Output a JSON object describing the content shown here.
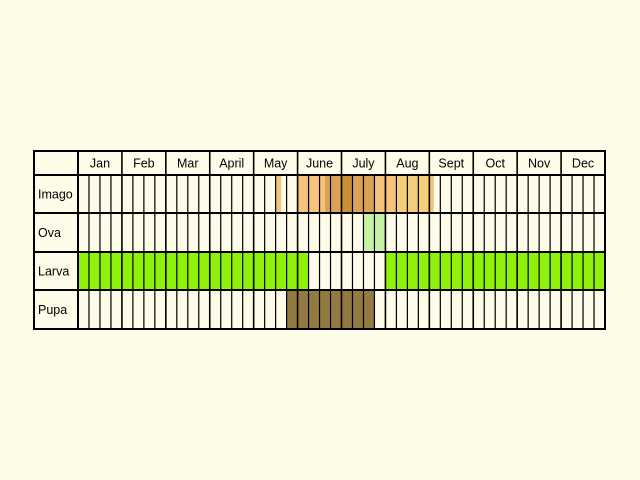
{
  "chart_data": {
    "type": "table",
    "months": [
      "Jan",
      "Feb",
      "Mar",
      "April",
      "May",
      "June",
      "July",
      "Aug",
      "Sept",
      "Oct",
      "Nov",
      "Dec"
    ],
    "subdivisions_per_month": 4,
    "period_unit": "quarter-month periods (1 = first quarter of Jan, 48 = last quarter of Dec)",
    "grid": true,
    "stages": [
      {
        "label": "Imago",
        "bands": [
          {
            "from": 18.0,
            "to": 18.5,
            "color": "#f5c47a"
          },
          {
            "from": 20.0,
            "to": 22.5,
            "color": "#f5c47a"
          },
          {
            "from": 22.5,
            "to": 24.0,
            "color": "#dba255"
          },
          {
            "from": 24.0,
            "to": 25.0,
            "color": "#c98e36"
          },
          {
            "from": 25.0,
            "to": 27.0,
            "color": "#dba255"
          },
          {
            "from": 27.0,
            "to": 28.5,
            "color": "#f5c47a"
          },
          {
            "from": 28.5,
            "to": 29.0,
            "color": "#f5c47a"
          },
          {
            "from": 29.0,
            "to": 32.0,
            "color": "#f5ce7a"
          },
          {
            "from": 32.0,
            "to": 32.4,
            "color": "#f5c47a"
          }
        ]
      },
      {
        "label": "Ova",
        "bands": [
          {
            "from": 26.0,
            "to": 28.0,
            "color": "#c7f2a4"
          }
        ]
      },
      {
        "label": "Larva",
        "bands": [
          {
            "from": 0.0,
            "to": 21.0,
            "color": "#8ff00a"
          },
          {
            "from": 28.0,
            "to": 48.0,
            "color": "#8ff00a"
          }
        ]
      },
      {
        "label": "Pupa",
        "bands": [
          {
            "from": 19.0,
            "to": 27.0,
            "color": "#937942"
          }
        ]
      }
    ]
  }
}
